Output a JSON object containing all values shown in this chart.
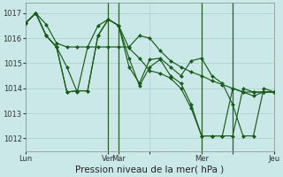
{
  "background_color": "#cbe8e8",
  "grid_color": "#a8cfc8",
  "line_color": "#1a5c1a",
  "marker_color": "#1a5c1a",
  "xlabel": "Pression niveau de la mer( hPa )",
  "ylim": [
    1011.5,
    1017.4
  ],
  "yticks": [
    1012,
    1013,
    1014,
    1015,
    1016,
    1017
  ],
  "series": [
    {
      "x": [
        0,
        1,
        2,
        3,
        4,
        5,
        6,
        7,
        8,
        9,
        10,
        11,
        12,
        13,
        14,
        15,
        16,
        17,
        18,
        19,
        20,
        21,
        22,
        23,
        24
      ],
      "y": [
        1016.6,
        1017.0,
        1016.55,
        1015.8,
        1015.65,
        1015.65,
        1015.65,
        1015.65,
        1015.65,
        1015.65,
        1015.65,
        1016.1,
        1016.0,
        1015.5,
        1015.1,
        1014.85,
        1014.65,
        1014.5,
        1014.3,
        1014.15,
        1014.0,
        1013.85,
        1013.7,
        1013.85,
        1013.85
      ]
    },
    {
      "x": [
        0,
        1,
        2,
        3,
        4,
        5,
        6,
        7,
        8,
        9,
        10,
        11,
        12,
        13,
        14,
        15,
        16,
        17,
        18,
        19,
        20,
        21,
        22,
        23,
        24
      ],
      "y": [
        1016.6,
        1017.0,
        1016.1,
        1015.65,
        1013.85,
        1013.9,
        1013.9,
        1016.1,
        1016.75,
        1016.5,
        1014.85,
        1014.2,
        1015.15,
        1015.2,
        1014.85,
        1014.5,
        1015.1,
        1015.2,
        1014.5,
        1014.2,
        1013.35,
        1012.1,
        1012.1,
        1014.0,
        1013.85
      ]
    },
    {
      "x": [
        0,
        1,
        2,
        3,
        4,
        5,
        6,
        7,
        8,
        9,
        10,
        11,
        12,
        13,
        14,
        15,
        16,
        17,
        18,
        19,
        20,
        21,
        22,
        23,
        24
      ],
      "y": [
        1016.6,
        1017.0,
        1016.1,
        1015.65,
        1013.85,
        1013.9,
        1013.9,
        1016.1,
        1016.75,
        1016.5,
        1015.6,
        1015.2,
        1014.7,
        1014.6,
        1014.4,
        1014.0,
        1013.2,
        1012.1,
        1012.1,
        1012.1,
        1012.1,
        1014.0,
        1013.85,
        1013.85,
        1013.85
      ]
    },
    {
      "x": [
        0,
        1,
        2,
        3,
        4,
        5,
        6,
        7,
        8,
        9,
        10,
        11,
        12,
        13,
        14,
        15,
        16,
        17,
        18,
        19,
        20,
        21,
        22,
        23,
        24
      ],
      "y": [
        1016.6,
        1017.0,
        1016.1,
        1015.65,
        1014.85,
        1013.85,
        1015.65,
        1016.5,
        1016.75,
        1016.5,
        1015.2,
        1014.1,
        1014.85,
        1015.15,
        1014.5,
        1014.2,
        1013.35,
        1012.1,
        1012.1,
        1012.1,
        1014.0,
        1013.85,
        1013.85,
        1013.85,
        1013.85
      ]
    }
  ],
  "xtick_positions": [
    0,
    8,
    9,
    12,
    17,
    20,
    24
  ],
  "xtick_labels": [
    "Lun",
    "Ven",
    "Mar",
    "",
    "Mer",
    "",
    "Jeu"
  ],
  "vline_positions": [
    8,
    9,
    17,
    20
  ],
  "vline_color": "#2a5c2a",
  "xlabel_fontsize": 7.5,
  "tick_fontsize": 6.0
}
